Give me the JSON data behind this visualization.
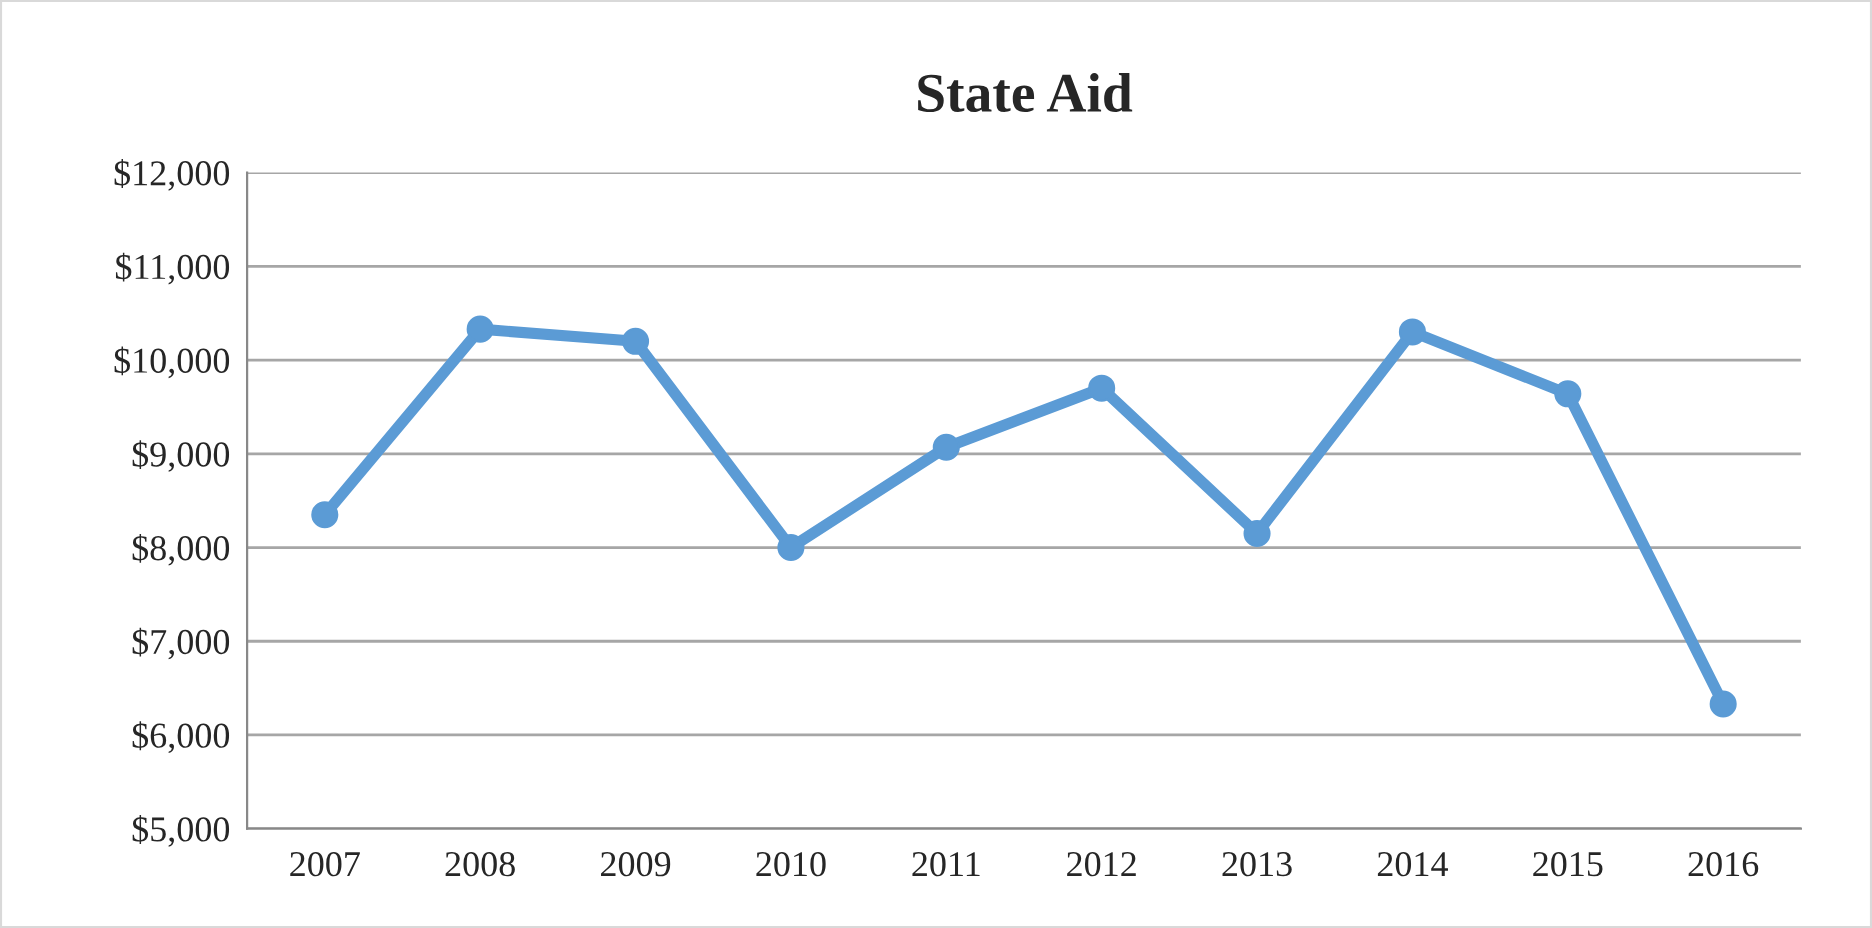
{
  "chart_data": {
    "type": "line",
    "title": "State Aid",
    "categories": [
      "2007",
      "2008",
      "2009",
      "2010",
      "2011",
      "2012",
      "2013",
      "2014",
      "2015",
      "2016"
    ],
    "series": [
      {
        "color": "#5b9bd5",
        "values": [
          8350,
          10330,
          10200,
          8000,
          9070,
          9700,
          8150,
          10300,
          9640,
          6330
        ]
      }
    ],
    "ylim": [
      5000,
      12000
    ],
    "yticks": [
      {
        "value": 5000,
        "label": "$5,000"
      },
      {
        "value": 6000,
        "label": "$6,000"
      },
      {
        "value": 7000,
        "label": "$7,000"
      },
      {
        "value": 8000,
        "label": "$8,000"
      },
      {
        "value": 9000,
        "label": "$9,000"
      },
      {
        "value": 10000,
        "label": "$10,000"
      },
      {
        "value": 11000,
        "label": "$11,000"
      },
      {
        "value": 12000,
        "label": "$12,000"
      }
    ],
    "grid": "y",
    "marker": "circle",
    "line_style": "solid",
    "legend": false
  }
}
